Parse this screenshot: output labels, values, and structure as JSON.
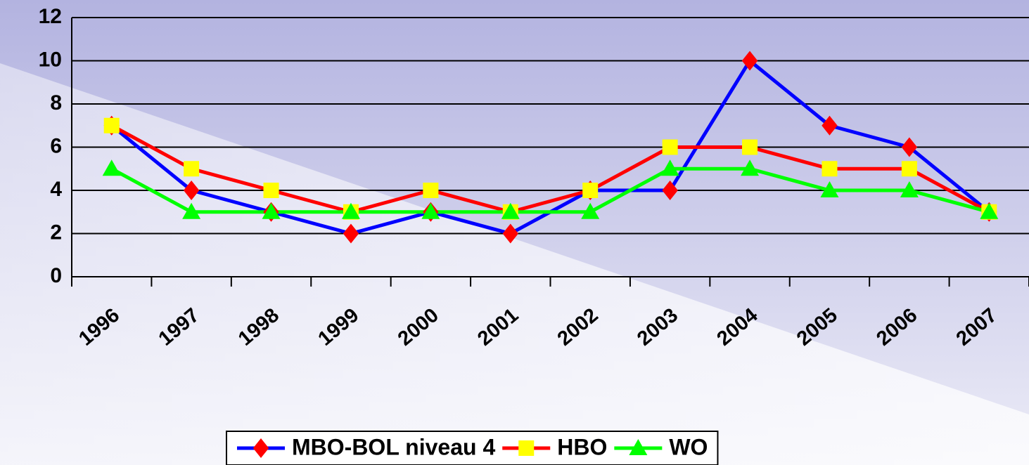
{
  "chart_data": {
    "type": "line",
    "categories": [
      "1996",
      "1997",
      "1998",
      "1999",
      "2000",
      "2001",
      "2002",
      "2003",
      "2004",
      "2005",
      "2006",
      "2007"
    ],
    "series": [
      {
        "name": "MBO-BOL niveau 4",
        "color": "#0000ff",
        "marker": "diamond",
        "marker_color": "#ff0000",
        "values": [
          7,
          4,
          3,
          2,
          3,
          2,
          4,
          4,
          10,
          7,
          6,
          3
        ]
      },
      {
        "name": "HBO",
        "color": "#ff0000",
        "marker": "square",
        "marker_color": "#ffff00",
        "values": [
          7,
          5,
          4,
          3,
          4,
          3,
          4,
          6,
          6,
          5,
          5,
          3
        ]
      },
      {
        "name": "WO",
        "color": "#00ff00",
        "marker": "triangle",
        "marker_color": "#00ff00",
        "values": [
          5,
          3,
          3,
          3,
          3,
          3,
          3,
          5,
          5,
          4,
          4,
          3
        ]
      }
    ],
    "ylim": [
      0,
      12
    ],
    "yticks": [
      0,
      2,
      4,
      6,
      8,
      10,
      12
    ],
    "grid": true,
    "legend": "bottom"
  }
}
